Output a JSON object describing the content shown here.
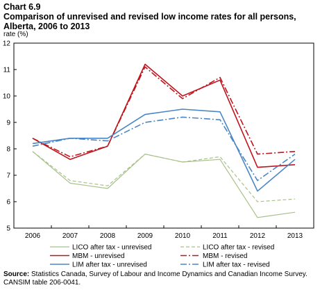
{
  "chart_number": "Chart 6.9",
  "title": "Comparison of unrevised and revised low income rates for all persons, Alberta, 2006 to 2013",
  "source": {
    "label": "Source:",
    "text": "Statistics Canada, Survey of Labour and Income Dynamics and Canadian Income Survey. CANSIM table 206-0041."
  },
  "chart_data": {
    "type": "line",
    "title": "Comparison of unrevised and revised low income rates for all persons, Alberta, 2006 to 2013",
    "ylabel": "rate (%)",
    "xlabel": "",
    "ylim": [
      5,
      12
    ],
    "yticks": [
      5,
      6,
      7,
      8,
      9,
      10,
      11,
      12
    ],
    "x": [
      "2006",
      "2007",
      "2008",
      "2009",
      "2010",
      "2011",
      "2012",
      "2013"
    ],
    "grid": "horizontal",
    "legend_position": "bottom",
    "series": [
      {
        "name": "LICO after tax - unrevised",
        "color": "#a8c08a",
        "style": "solid",
        "width": 1.2,
        "values": [
          7.9,
          6.7,
          6.5,
          7.8,
          7.5,
          7.6,
          5.4,
          5.6
        ]
      },
      {
        "name": "LICO after tax - revised",
        "color": "#a8c08a",
        "style": "dashed",
        "width": 1.2,
        "values": [
          7.9,
          6.8,
          6.6,
          7.8,
          7.5,
          7.7,
          6.0,
          6.1
        ]
      },
      {
        "name": "MBM - unrevised",
        "color": "#c0141c",
        "style": "solid",
        "width": 1.6,
        "values": [
          8.4,
          7.6,
          8.1,
          11.2,
          10.0,
          10.6,
          7.3,
          7.4
        ]
      },
      {
        "name": "MBM - revised",
        "color": "#c0141c",
        "style": "dashdot",
        "width": 1.6,
        "values": [
          8.4,
          7.7,
          8.1,
          11.1,
          9.9,
          10.7,
          7.8,
          7.9
        ]
      },
      {
        "name": "LIM after tax - unrevised",
        "color": "#4a86c5",
        "style": "solid",
        "width": 1.6,
        "values": [
          8.2,
          8.4,
          8.4,
          9.3,
          9.5,
          9.4,
          6.4,
          7.6
        ]
      },
      {
        "name": "LIM after tax - revised",
        "color": "#4a86c5",
        "style": "dashdot",
        "width": 1.6,
        "values": [
          8.1,
          8.4,
          8.3,
          9.0,
          9.2,
          9.1,
          6.8,
          7.8
        ]
      }
    ]
  }
}
